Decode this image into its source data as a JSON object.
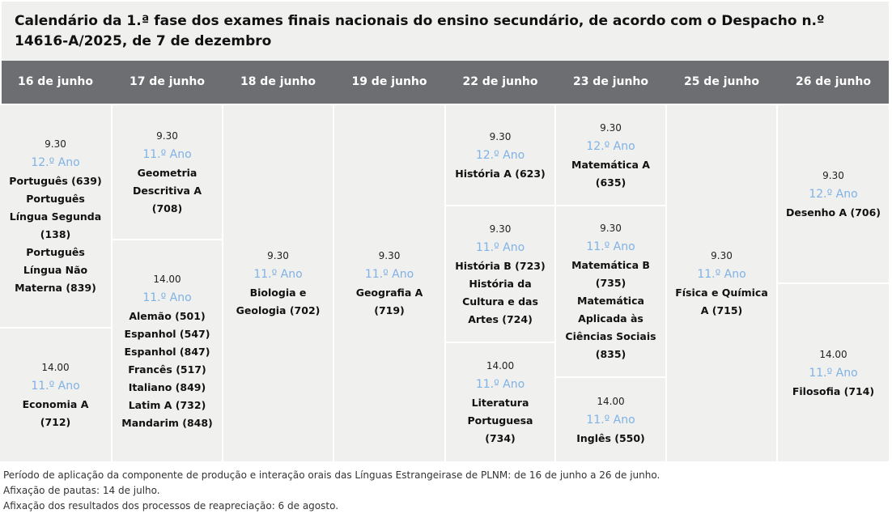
{
  "title": "Calendário da 1.ª fase dos exames finais nacionais do ensino secundário, de acordo com o Despacho n.º 14616-A/2025, de 7 de dezembro",
  "columns": [
    {
      "date": "16 de junho",
      "slots": [
        {
          "time": "9.30",
          "year": "12.º Ano",
          "exams": [
            "Português (639)",
            "Português Língua Segunda (138)",
            "Português Língua Não Materna (839)"
          ]
        },
        {
          "time": "14.00",
          "year": "11.º Ano",
          "exams": [
            "Economia A (712)"
          ]
        }
      ]
    },
    {
      "date": "17 de junho",
      "slots": [
        {
          "time": "9.30",
          "year": "11.º Ano",
          "exams": [
            "Geometria Descritiva A (708)"
          ]
        },
        {
          "time": "14.00",
          "year": "11.º Ano",
          "exams": [
            "Alemão (501)",
            "Espanhol (547)",
            "Espanhol (847)",
            "Francês (517)",
            "Italiano (849)",
            "Latim A (732)",
            "Mandarim (848)"
          ]
        }
      ]
    },
    {
      "date": "18 de junho",
      "slots": [
        {
          "time": "9.30",
          "year": "11.º Ano",
          "exams": [
            "Biologia e Geologia (702)"
          ]
        }
      ]
    },
    {
      "date": "19 de junho",
      "slots": [
        {
          "time": "9.30",
          "year": "11.º Ano",
          "exams": [
            "Geografia A (719)"
          ]
        }
      ]
    },
    {
      "date": "22 de junho",
      "slots": [
        {
          "time": "9.30",
          "year": "12.º Ano",
          "exams": [
            "História A (623)"
          ]
        },
        {
          "time": "9.30",
          "year": "11.º Ano",
          "exams": [
            "História B (723)",
            "História da Cultura e das Artes (724)"
          ]
        },
        {
          "time": "14.00",
          "year": "11.º Ano",
          "exams": [
            "Literatura Portuguesa (734)"
          ]
        }
      ]
    },
    {
      "date": "23 de junho",
      "slots": [
        {
          "time": "9.30",
          "year": "12.º Ano",
          "exams": [
            "Matemática A (635)"
          ]
        },
        {
          "time": "9.30",
          "year": "11.º Ano",
          "exams": [
            "Matemática B (735)",
            "Matemática Aplicada às Ciências Sociais (835)"
          ]
        },
        {
          "time": "14.00",
          "year": "11.º Ano",
          "exams": [
            "Inglês (550)"
          ]
        }
      ]
    },
    {
      "date": "25 de junho",
      "slots": [
        {
          "time": "9.30",
          "year": "11.º Ano",
          "exams": [
            "Física e Química A (715)"
          ]
        }
      ]
    },
    {
      "date": "26 de junho",
      "slots": [
        {
          "time": "9.30",
          "year": "12.º Ano",
          "exams": [
            "Desenho A (706)"
          ]
        },
        {
          "time": "14.00",
          "year": "11.º Ano",
          "exams": [
            "Filosofia (714)"
          ]
        }
      ]
    }
  ],
  "footnotes": [
    "Período de aplicação da componente de produção e interação orais das Línguas Estrangeirase de PLNM: de 16 de junho a 26 de junho.",
    "Afixação de pautas: 14 de julho.",
    "Afixação dos resultados dos processos de reapreciação: 6 de agosto."
  ],
  "colors": {
    "header_bg": "#6d6e71",
    "cell_bg": "#f0f0ef",
    "year_text": "#7fb2e5"
  }
}
